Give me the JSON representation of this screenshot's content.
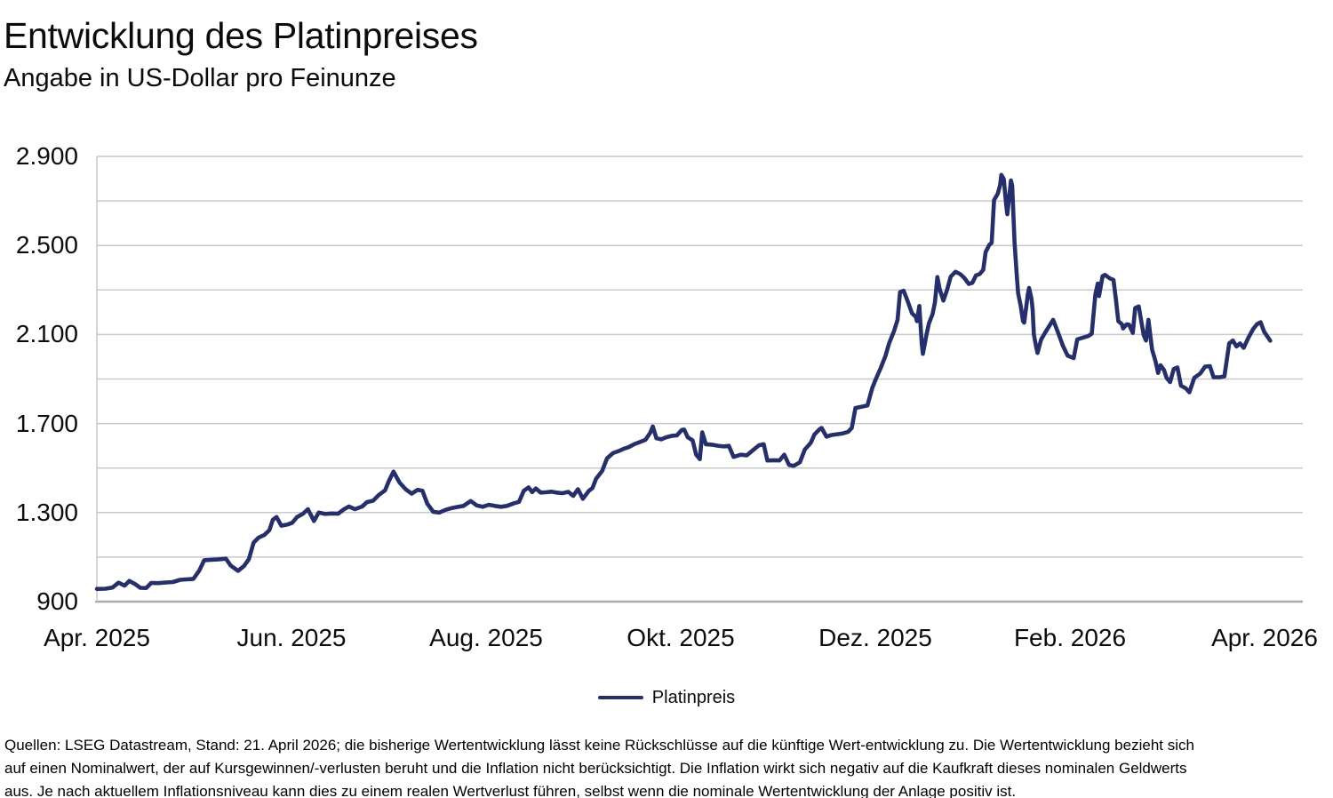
{
  "header": {
    "title": "Entwicklung des Platinpreises",
    "subtitle": "Angabe in US-Dollar pro Feinunze"
  },
  "legend": {
    "label": "Platinpreis",
    "position": "bottom-center"
  },
  "footer": {
    "lines": [
      "Quellen: LSEG Datastream, Stand: 21. April 2026; die bisherige Wertentwicklung lässt keine Rückschlüsse auf die künftige Wert-entwicklung zu. Die Wertentwicklung bezieht sich",
      "auf einen Nominalwert, der auf Kursgewinnen/-verlusten beruht und die Inflation nicht berücksichtigt. Die Inflation wirkt sich negativ auf die Kaufkraft dieses nominalen Geldwerts",
      "aus. Je nach aktuellem Inflationsniveau kann dies zu einem realen Wertverlust führen, selbst wenn die nominale Wertentwicklung der Anlage positiv ist."
    ]
  },
  "colors": {
    "line": "#252f6e",
    "grid": "#c9c9c9",
    "axis_bottom": "#aaaaaa",
    "text": "#0b0b0b",
    "background": "#ffffff"
  },
  "chart_data": {
    "type": "line",
    "title": "Entwicklung des Platinpreises",
    "subtitle": "Angabe in US-Dollar pro Feinunze",
    "unit": "US-Dollar pro Feinunze",
    "grid": true,
    "legend_position": "bottom-center",
    "x_tick_labels": [
      "Apr. 2025",
      "Jun. 2025",
      "Aug. 2025",
      "Okt. 2025",
      "Dez. 2025",
      "Feb. 2026",
      "Apr. 2026"
    ],
    "y_tick_labels": [
      "2.900",
      "2.500",
      "2.100",
      "1.700",
      "1.300",
      "900"
    ],
    "y_tick_values": [
      2900,
      2500,
      2100,
      1700,
      1300,
      900
    ],
    "y_axis": {
      "min": 900,
      "max": 2900,
      "gridline_step": 200,
      "label_step": 400
    },
    "x_format": "fraction_of_axis_0_to_1",
    "series": [
      {
        "name": "Platinpreis",
        "color": "#252f6e",
        "points": [
          [
            0.0,
            957
          ],
          [
            0.007,
            958
          ],
          [
            0.013,
            963
          ],
          [
            0.018,
            985
          ],
          [
            0.023,
            972
          ],
          [
            0.027,
            993
          ],
          [
            0.032,
            978
          ],
          [
            0.036,
            962
          ],
          [
            0.041,
            961
          ],
          [
            0.045,
            984
          ],
          [
            0.051,
            983
          ],
          [
            0.057,
            986
          ],
          [
            0.063,
            988
          ],
          [
            0.069,
            998
          ],
          [
            0.074,
            1000
          ],
          [
            0.08,
            1002
          ],
          [
            0.085,
            1040
          ],
          [
            0.089,
            1086
          ],
          [
            0.095,
            1088
          ],
          [
            0.101,
            1090
          ],
          [
            0.107,
            1093
          ],
          [
            0.111,
            1062
          ],
          [
            0.117,
            1038
          ],
          [
            0.122,
            1060
          ],
          [
            0.126,
            1090
          ],
          [
            0.13,
            1165
          ],
          [
            0.134,
            1187
          ],
          [
            0.139,
            1200
          ],
          [
            0.143,
            1221
          ],
          [
            0.146,
            1268
          ],
          [
            0.149,
            1280
          ],
          [
            0.153,
            1241
          ],
          [
            0.158,
            1246
          ],
          [
            0.162,
            1254
          ],
          [
            0.166,
            1280
          ],
          [
            0.171,
            1295
          ],
          [
            0.175,
            1315
          ],
          [
            0.18,
            1262
          ],
          [
            0.184,
            1300
          ],
          [
            0.189,
            1294
          ],
          [
            0.195,
            1296
          ],
          [
            0.2,
            1295
          ],
          [
            0.205,
            1315
          ],
          [
            0.209,
            1327
          ],
          [
            0.214,
            1315
          ],
          [
            0.22,
            1327
          ],
          [
            0.224,
            1347
          ],
          [
            0.229,
            1353
          ],
          [
            0.234,
            1380
          ],
          [
            0.239,
            1400
          ],
          [
            0.242,
            1440
          ],
          [
            0.246,
            1484
          ],
          [
            0.251,
            1435
          ],
          [
            0.256,
            1405
          ],
          [
            0.261,
            1385
          ],
          [
            0.266,
            1402
          ],
          [
            0.27,
            1398
          ],
          [
            0.274,
            1340
          ],
          [
            0.279,
            1303
          ],
          [
            0.284,
            1300
          ],
          [
            0.289,
            1312
          ],
          [
            0.294,
            1320
          ],
          [
            0.299,
            1325
          ],
          [
            0.304,
            1330
          ],
          [
            0.31,
            1352
          ],
          [
            0.315,
            1332
          ],
          [
            0.32,
            1326
          ],
          [
            0.325,
            1335
          ],
          [
            0.33,
            1330
          ],
          [
            0.335,
            1326
          ],
          [
            0.34,
            1330
          ],
          [
            0.346,
            1342
          ],
          [
            0.35,
            1348
          ],
          [
            0.354,
            1398
          ],
          [
            0.358,
            1413
          ],
          [
            0.361,
            1392
          ],
          [
            0.364,
            1408
          ],
          [
            0.368,
            1390
          ],
          [
            0.372,
            1391
          ],
          [
            0.377,
            1394
          ],
          [
            0.381,
            1390
          ],
          [
            0.386,
            1387
          ],
          [
            0.391,
            1393
          ],
          [
            0.395,
            1375
          ],
          [
            0.399,
            1405
          ],
          [
            0.403,
            1362
          ],
          [
            0.408,
            1398
          ],
          [
            0.411,
            1410
          ],
          [
            0.414,
            1452
          ],
          [
            0.419,
            1487
          ],
          [
            0.423,
            1543
          ],
          [
            0.428,
            1567
          ],
          [
            0.433,
            1577
          ],
          [
            0.437,
            1587
          ],
          [
            0.441,
            1594
          ],
          [
            0.446,
            1608
          ],
          [
            0.45,
            1616
          ],
          [
            0.455,
            1627
          ],
          [
            0.459,
            1660
          ],
          [
            0.461,
            1687
          ],
          [
            0.464,
            1634
          ],
          [
            0.468,
            1629
          ],
          [
            0.472,
            1638
          ],
          [
            0.477,
            1645
          ],
          [
            0.481,
            1647
          ],
          [
            0.485,
            1671
          ],
          [
            0.487,
            1673
          ],
          [
            0.49,
            1638
          ],
          [
            0.494,
            1624
          ],
          [
            0.497,
            1560
          ],
          [
            0.5,
            1540
          ],
          [
            0.502,
            1660
          ],
          [
            0.505,
            1607
          ],
          [
            0.51,
            1605
          ],
          [
            0.515,
            1600
          ],
          [
            0.52,
            1597
          ],
          [
            0.524,
            1600
          ],
          [
            0.528,
            1550
          ],
          [
            0.534,
            1560
          ],
          [
            0.539,
            1557
          ],
          [
            0.544,
            1580
          ],
          [
            0.549,
            1602
          ],
          [
            0.553,
            1607
          ],
          [
            0.556,
            1534
          ],
          [
            0.562,
            1535
          ],
          [
            0.566,
            1534
          ],
          [
            0.57,
            1560
          ],
          [
            0.574,
            1514
          ],
          [
            0.578,
            1510
          ],
          [
            0.583,
            1526
          ],
          [
            0.587,
            1583
          ],
          [
            0.592,
            1613
          ],
          [
            0.595,
            1650
          ],
          [
            0.599,
            1673
          ],
          [
            0.601,
            1680
          ],
          [
            0.605,
            1641
          ],
          [
            0.609,
            1648
          ],
          [
            0.614,
            1652
          ],
          [
            0.618,
            1655
          ],
          [
            0.623,
            1663
          ],
          [
            0.626,
            1680
          ],
          [
            0.629,
            1770
          ],
          [
            0.634,
            1775
          ],
          [
            0.639,
            1781
          ],
          [
            0.643,
            1860
          ],
          [
            0.646,
            1900
          ],
          [
            0.65,
            1950
          ],
          [
            0.654,
            2005
          ],
          [
            0.657,
            2060
          ],
          [
            0.661,
            2115
          ],
          [
            0.664,
            2166
          ],
          [
            0.666,
            2290
          ],
          [
            0.669,
            2297
          ],
          [
            0.672,
            2255
          ],
          [
            0.676,
            2195
          ],
          [
            0.679,
            2180
          ],
          [
            0.68,
            2160
          ],
          [
            0.682,
            2228
          ],
          [
            0.684,
            2060
          ],
          [
            0.685,
            2013
          ],
          [
            0.688,
            2100
          ],
          [
            0.69,
            2150
          ],
          [
            0.693,
            2192
          ],
          [
            0.695,
            2245
          ],
          [
            0.697,
            2358
          ],
          [
            0.699,
            2302
          ],
          [
            0.702,
            2252
          ],
          [
            0.705,
            2300
          ],
          [
            0.708,
            2360
          ],
          [
            0.712,
            2382
          ],
          [
            0.716,
            2371
          ],
          [
            0.719,
            2356
          ],
          [
            0.723,
            2327
          ],
          [
            0.726,
            2332
          ],
          [
            0.729,
            2366
          ],
          [
            0.732,
            2371
          ],
          [
            0.735,
            2390
          ],
          [
            0.737,
            2470
          ],
          [
            0.74,
            2502
          ],
          [
            0.742,
            2512
          ],
          [
            0.744,
            2704
          ],
          [
            0.747,
            2732
          ],
          [
            0.749,
            2771
          ],
          [
            0.75,
            2817
          ],
          [
            0.752,
            2799
          ],
          [
            0.754,
            2684
          ],
          [
            0.755,
            2640
          ],
          [
            0.758,
            2792
          ],
          [
            0.759,
            2768
          ],
          [
            0.761,
            2510
          ],
          [
            0.763,
            2352
          ],
          [
            0.764,
            2285
          ],
          [
            0.766,
            2230
          ],
          [
            0.768,
            2160
          ],
          [
            0.769,
            2153
          ],
          [
            0.772,
            2280
          ],
          [
            0.773,
            2309
          ],
          [
            0.775,
            2260
          ],
          [
            0.776,
            2213
          ],
          [
            0.777,
            2100
          ],
          [
            0.779,
            2042
          ],
          [
            0.78,
            2017
          ],
          [
            0.783,
            2077
          ],
          [
            0.786,
            2105
          ],
          [
            0.79,
            2140
          ],
          [
            0.793,
            2166
          ],
          [
            0.797,
            2110
          ],
          [
            0.801,
            2050
          ],
          [
            0.805,
            2005
          ],
          [
            0.81,
            1994
          ],
          [
            0.813,
            2078
          ],
          [
            0.817,
            2085
          ],
          [
            0.822,
            2093
          ],
          [
            0.825,
            2103
          ],
          [
            0.828,
            2280
          ],
          [
            0.83,
            2329
          ],
          [
            0.831,
            2273
          ],
          [
            0.834,
            2362
          ],
          [
            0.836,
            2368
          ],
          [
            0.84,
            2352
          ],
          [
            0.843,
            2345
          ],
          [
            0.845,
            2258
          ],
          [
            0.847,
            2160
          ],
          [
            0.85,
            2146
          ],
          [
            0.851,
            2127
          ],
          [
            0.854,
            2146
          ],
          [
            0.856,
            2144
          ],
          [
            0.859,
            2107
          ],
          [
            0.861,
            2219
          ],
          [
            0.864,
            2226
          ],
          [
            0.868,
            2098
          ],
          [
            0.87,
            2073
          ],
          [
            0.872,
            2166
          ],
          [
            0.875,
            2032
          ],
          [
            0.878,
            1978
          ],
          [
            0.88,
            1927
          ],
          [
            0.882,
            1962
          ],
          [
            0.885,
            1940
          ],
          [
            0.887,
            1905
          ],
          [
            0.89,
            1886
          ],
          [
            0.893,
            1945
          ],
          [
            0.896,
            1952
          ],
          [
            0.899,
            1870
          ],
          [
            0.903,
            1858
          ],
          [
            0.906,
            1840
          ],
          [
            0.91,
            1905
          ],
          [
            0.915,
            1925
          ],
          [
            0.919,
            1956
          ],
          [
            0.923,
            1958
          ],
          [
            0.926,
            1908
          ],
          [
            0.931,
            1908
          ],
          [
            0.935,
            1912
          ],
          [
            0.939,
            2060
          ],
          [
            0.942,
            2073
          ],
          [
            0.945,
            2046
          ],
          [
            0.948,
            2060
          ],
          [
            0.951,
            2040
          ],
          [
            0.955,
            2086
          ],
          [
            0.959,
            2126
          ],
          [
            0.962,
            2146
          ],
          [
            0.965,
            2155
          ],
          [
            0.968,
            2112
          ],
          [
            0.973,
            2072
          ]
        ]
      }
    ]
  }
}
